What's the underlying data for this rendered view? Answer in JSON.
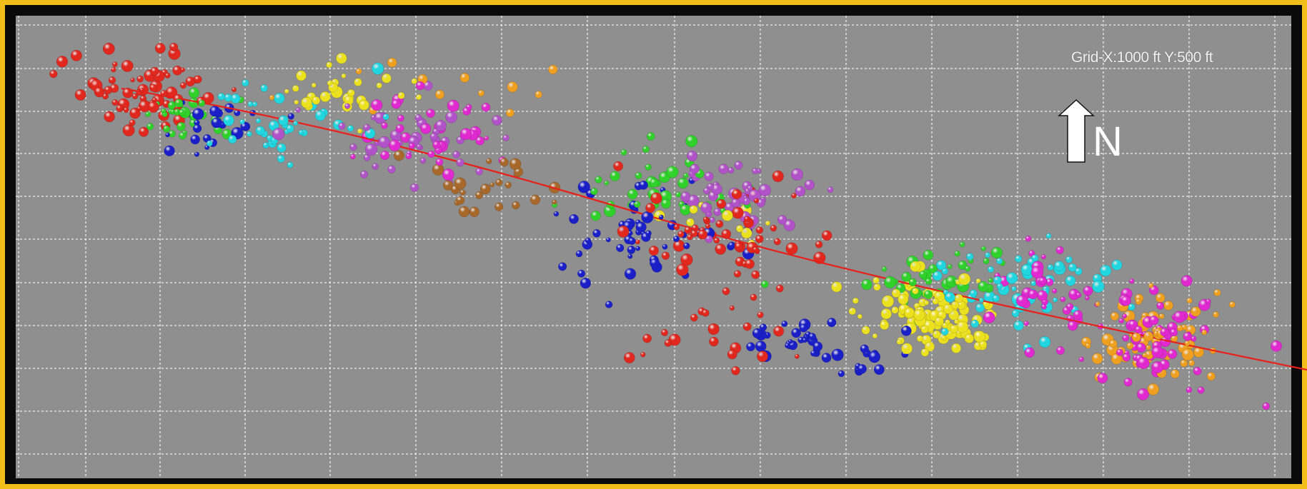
{
  "grid_label": "Grid-X:1000 ft Y:500 ft",
  "north_label": "N",
  "colors": {
    "frame": "#f2be1a",
    "background": "#8f8f8f",
    "grid": "#ffffff",
    "well_path": "#e8201a"
  },
  "chart_data": {
    "type": "scatter",
    "title": "",
    "xlabel": "",
    "ylabel": "",
    "grid": true,
    "grid_spacing": {
      "x": "1000 ft",
      "y": "500 ft"
    },
    "orientation": "north-up",
    "well_path": {
      "color": "#e8201a",
      "trend": "WNW to ESE, descending to the right"
    },
    "stage_colors": [
      "red",
      "green",
      "blue",
      "cyan",
      "yellow",
      "magenta",
      "purple",
      "orange",
      "brown"
    ],
    "clusters": [
      {
        "color": "red",
        "hex": "#e0281f",
        "region": "west end near heel, upper left",
        "count": 70
      },
      {
        "color": "green",
        "hex": "#2fd12a",
        "region": "upper left",
        "count": 30
      },
      {
        "color": "blue",
        "hex": "#1a1fc8",
        "region": "upper left",
        "count": 25
      },
      {
        "color": "cyan",
        "hex": "#22d6e0",
        "region": "upper left center",
        "count": 40
      },
      {
        "color": "yellow",
        "hex": "#ece11e",
        "region": "upper left center",
        "count": 30
      },
      {
        "color": "purple",
        "hex": "#b252c8",
        "region": "upper center",
        "count": 45
      },
      {
        "color": "magenta",
        "hex": "#e02ad0",
        "region": "upper center",
        "count": 35
      },
      {
        "color": "orange",
        "hex": "#f0a020",
        "region": "upper center",
        "count": 12
      },
      {
        "color": "brown",
        "hex": "#a8682a",
        "region": "center",
        "count": 25
      },
      {
        "color": "green",
        "hex": "#2fd12a",
        "region": "center",
        "count": 40
      },
      {
        "color": "blue",
        "hex": "#1a1fc8",
        "region": "center",
        "count": 55
      },
      {
        "color": "purple",
        "hex": "#b252c8",
        "region": "center",
        "count": 50
      },
      {
        "color": "red",
        "hex": "#e0281f",
        "region": "center",
        "count": 60
      },
      {
        "color": "yellow",
        "hex": "#ece11e",
        "region": "center",
        "count": 12
      },
      {
        "color": "blue",
        "hex": "#1a1fc8",
        "region": "center lower",
        "count": 25
      },
      {
        "color": "red",
        "hex": "#e0281f",
        "region": "center lower",
        "count": 20
      },
      {
        "color": "green",
        "hex": "#2fd12a",
        "region": "center right",
        "count": 40
      },
      {
        "color": "yellow",
        "hex": "#ece11e",
        "region": "center right",
        "count": 110
      },
      {
        "color": "blue",
        "hex": "#1a1fc8",
        "region": "center right lower",
        "count": 15
      },
      {
        "color": "cyan",
        "hex": "#22d6e0",
        "region": "right center",
        "count": 60
      },
      {
        "color": "magenta",
        "hex": "#e02ad0",
        "region": "right center",
        "count": 35
      },
      {
        "color": "orange",
        "hex": "#f0a020",
        "region": "east end near toe, lower right",
        "count": 70
      },
      {
        "color": "magenta",
        "hex": "#e02ad0",
        "region": "east end near toe, lower right",
        "count": 70
      }
    ]
  }
}
